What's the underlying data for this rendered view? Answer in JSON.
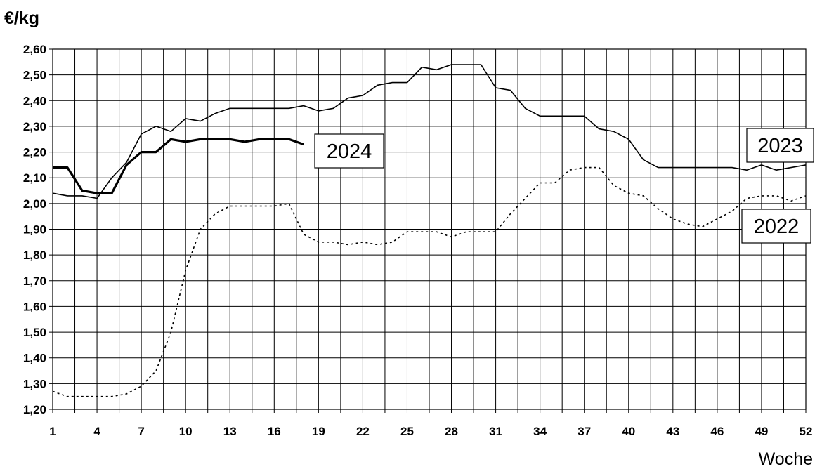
{
  "chart_data": {
    "type": "line",
    "ylabel": "€/kg",
    "xlabel": "Woche",
    "ylim": [
      1.2,
      2.6
    ],
    "xlim": [
      1,
      52
    ],
    "y_ticks": [
      "1,20",
      "1,30",
      "1,40",
      "1,50",
      "1,60",
      "1,70",
      "1,80",
      "1,90",
      "2,00",
      "2,10",
      "2,20",
      "2,30",
      "2,40",
      "2,50",
      "2,60"
    ],
    "x_ticks": [
      "1",
      "4",
      "7",
      "10",
      "13",
      "16",
      "19",
      "22",
      "25",
      "28",
      "31",
      "34",
      "37",
      "40",
      "43",
      "46",
      "49",
      "52"
    ],
    "grid": true,
    "series": [
      {
        "name": "2023",
        "style": "thin-solid",
        "color": "#000000",
        "x": [
          1,
          2,
          3,
          4,
          5,
          6,
          7,
          8,
          9,
          10,
          11,
          12,
          13,
          14,
          15,
          16,
          17,
          18,
          19,
          20,
          21,
          22,
          23,
          24,
          25,
          26,
          27,
          28,
          29,
          30,
          31,
          32,
          33,
          34,
          35,
          36,
          37,
          38,
          39,
          40,
          41,
          42,
          43,
          44,
          45,
          46,
          47,
          48,
          49,
          50,
          51,
          52
        ],
        "values": [
          2.04,
          2.03,
          2.03,
          2.02,
          2.1,
          2.16,
          2.27,
          2.3,
          2.28,
          2.33,
          2.32,
          2.35,
          2.37,
          2.37,
          2.37,
          2.37,
          2.37,
          2.38,
          2.36,
          2.37,
          2.41,
          2.42,
          2.46,
          2.47,
          2.47,
          2.53,
          2.52,
          2.54,
          2.54,
          2.54,
          2.45,
          2.44,
          2.37,
          2.34,
          2.34,
          2.34,
          2.34,
          2.29,
          2.28,
          2.25,
          2.17,
          2.14,
          2.14,
          2.14,
          2.14,
          2.14,
          2.14,
          2.13,
          2.15,
          2.13,
          2.14,
          2.15
        ]
      },
      {
        "name": "2024",
        "style": "thick-solid",
        "color": "#000000",
        "x": [
          1,
          2,
          3,
          4,
          5,
          6,
          7,
          8,
          9,
          10,
          11,
          12,
          13,
          14,
          15,
          16,
          17,
          18
        ],
        "values": [
          2.14,
          2.14,
          2.05,
          2.04,
          2.04,
          2.15,
          2.2,
          2.2,
          2.25,
          2.24,
          2.25,
          2.25,
          2.25,
          2.24,
          2.25,
          2.25,
          2.25,
          2.23
        ]
      },
      {
        "name": "2022",
        "style": "dotted",
        "color": "#000000",
        "x": [
          1,
          2,
          3,
          4,
          5,
          6,
          7,
          8,
          9,
          10,
          11,
          12,
          13,
          14,
          15,
          16,
          17,
          18,
          19,
          20,
          21,
          22,
          23,
          24,
          25,
          26,
          27,
          28,
          29,
          30,
          31,
          32,
          33,
          34,
          35,
          36,
          37,
          38,
          39,
          40,
          41,
          42,
          43,
          44,
          45,
          46,
          47,
          48,
          49,
          50,
          51,
          52
        ],
        "values": [
          1.27,
          1.25,
          1.25,
          1.25,
          1.25,
          1.26,
          1.29,
          1.35,
          1.5,
          1.74,
          1.9,
          1.96,
          1.99,
          1.99,
          1.99,
          1.99,
          2.0,
          1.88,
          1.85,
          1.85,
          1.84,
          1.85,
          1.84,
          1.85,
          1.89,
          1.89,
          1.89,
          1.87,
          1.89,
          1.89,
          1.89,
          1.96,
          2.02,
          2.08,
          2.08,
          2.13,
          2.14,
          2.14,
          2.07,
          2.04,
          2.03,
          1.98,
          1.94,
          1.92,
          1.91,
          1.94,
          1.97,
          2.02,
          2.03,
          2.03,
          2.01,
          2.03
        ]
      }
    ]
  }
}
